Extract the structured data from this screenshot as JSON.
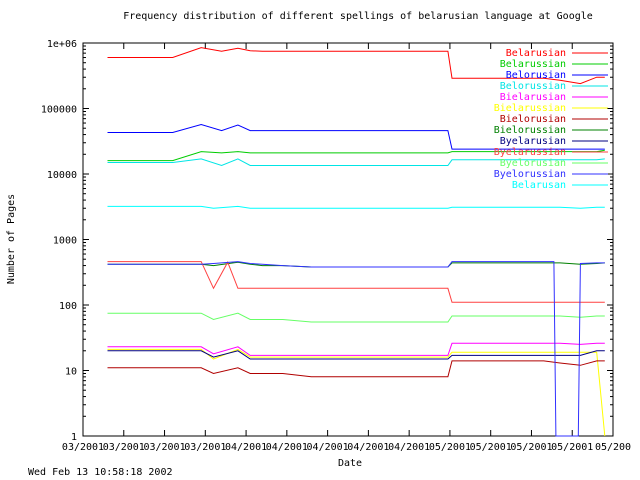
{
  "chart_data": {
    "type": "line",
    "title": "Frequency distribution of different spellings of belarusian language at Google",
    "xlabel": "Date",
    "ylabel": "Number of Pages",
    "timestamp": "Wed Feb 13 10:58:18 2002",
    "y_scale": "log",
    "ylim": [
      1,
      1000000
    ],
    "y_ticks": [
      {
        "value": 1,
        "label": "1"
      },
      {
        "value": 10,
        "label": "10"
      },
      {
        "value": 100,
        "label": "100"
      },
      {
        "value": 1000,
        "label": "1000"
      },
      {
        "value": 10000,
        "label": "10000"
      },
      {
        "value": 100000,
        "label": "100000"
      },
      {
        "value": 1000000,
        "label": "1e+06"
      }
    ],
    "x_ticks": [
      {
        "index": 0,
        "label": "03/2001"
      },
      {
        "index": 1,
        "label": "03/2001"
      },
      {
        "index": 2,
        "label": "03/2001"
      },
      {
        "index": 3,
        "label": "03/2001"
      },
      {
        "index": 4,
        "label": "04/2001"
      },
      {
        "index": 5,
        "label": "04/2001"
      },
      {
        "index": 6,
        "label": "04/2001"
      },
      {
        "index": 7,
        "label": "04/2001"
      },
      {
        "index": 8,
        "label": "04/2001"
      },
      {
        "index": 9,
        "label": "05/2001"
      },
      {
        "index": 10,
        "label": "05/2001"
      },
      {
        "index": 11,
        "label": "05/2001"
      },
      {
        "index": 12,
        "label": "05/2001"
      },
      {
        "index": 13,
        "label": "05/200"
      }
    ],
    "xlim": [
      0,
      13
    ],
    "grid": false,
    "legend_position": "top-right",
    "series": [
      {
        "name": "Belarusian",
        "color": "#ff0000",
        "x": [
          0.6,
          2.2,
          2.9,
          3.4,
          3.8,
          4.1,
          4.4,
          4.9,
          5.6,
          7.0,
          8.0,
          8.95,
          9.05,
          11.3,
          11.7,
          12.2,
          12.6,
          12.8
        ],
        "y": [
          600000,
          600000,
          850000,
          750000,
          830000,
          760000,
          750000,
          750000,
          750000,
          750000,
          750000,
          750000,
          290000,
          290000,
          270000,
          240000,
          300000,
          300000
        ]
      },
      {
        "name": "Belarussian",
        "color": "#00cc00",
        "x": [
          0.6,
          2.2,
          2.9,
          3.4,
          3.8,
          4.1,
          4.4,
          4.9,
          5.6,
          7.0,
          8.0,
          8.95,
          9.05,
          11.3,
          11.7,
          12.2,
          12.6,
          12.8
        ],
        "y": [
          16000,
          16000,
          22000,
          21000,
          22000,
          21000,
          21000,
          21000,
          21000,
          21000,
          21000,
          21000,
          22000,
          22000,
          22000,
          22000,
          22000,
          23000
        ]
      },
      {
        "name": "Belorusian",
        "color": "#0000ff",
        "x": [
          0.6,
          2.2,
          2.9,
          3.4,
          3.8,
          4.1,
          4.4,
          4.9,
          5.6,
          7.0,
          8.0,
          8.95,
          9.05,
          11.3,
          11.7,
          12.2,
          12.6,
          12.8
        ],
        "y": [
          43000,
          43000,
          57000,
          46000,
          56000,
          46000,
          46000,
          46000,
          46000,
          46000,
          46000,
          46000,
          24000,
          24000,
          24000,
          24000,
          24000,
          24000
        ]
      },
      {
        "name": "Belorussian",
        "color": "#00e5e5",
        "x": [
          0.6,
          2.2,
          2.9,
          3.4,
          3.8,
          4.1,
          4.4,
          4.9,
          5.6,
          7.0,
          8.0,
          8.95,
          9.05,
          11.3,
          11.7,
          12.2,
          12.6,
          12.8
        ],
        "y": [
          15000,
          15000,
          17000,
          13500,
          17000,
          13500,
          13500,
          13500,
          13500,
          13500,
          13500,
          13500,
          16500,
          16500,
          16500,
          16500,
          16500,
          17000
        ]
      },
      {
        "name": "Bielarusian",
        "color": "#ff00ff",
        "x": [
          0.6,
          2.2,
          2.9,
          3.2,
          3.8,
          4.1,
          4.4,
          4.9,
          5.6,
          7.0,
          8.0,
          8.95,
          9.05,
          11.3,
          11.7,
          12.2,
          12.6,
          12.8
        ],
        "y": [
          23,
          23,
          23,
          18,
          23,
          17,
          17,
          17,
          17,
          17,
          17,
          17,
          26,
          26,
          26,
          25,
          26,
          26
        ]
      },
      {
        "name": "Bielarussian",
        "color": "#ffff00",
        "x": [
          0.6,
          2.2,
          2.9,
          3.2,
          3.8,
          4.1,
          4.4,
          4.9,
          5.6,
          7.0,
          8.0,
          8.95,
          9.05,
          11.3,
          11.7,
          12.2,
          12.6,
          12.8
        ],
        "y": [
          21,
          21,
          21,
          15,
          21,
          16,
          16,
          16,
          16,
          16,
          16,
          16,
          19,
          19,
          19,
          19,
          19,
          1
        ]
      },
      {
        "name": "Bielorusian",
        "color": "#b00000",
        "x": [
          0.6,
          2.2,
          2.9,
          3.2,
          3.8,
          4.1,
          4.4,
          4.9,
          5.6,
          7.0,
          8.0,
          8.95,
          9.05,
          11.3,
          11.7,
          12.2,
          12.6,
          12.8
        ],
        "y": [
          11,
          11,
          11,
          9,
          11,
          9,
          9,
          9,
          8,
          8,
          8,
          8,
          14,
          14,
          13,
          12,
          14,
          14
        ]
      },
      {
        "name": "Bielorussian",
        "color": "#008000",
        "x": [
          0.6,
          2.2,
          2.9,
          3.2,
          3.8,
          4.1,
          4.4,
          4.9,
          5.6,
          7.0,
          8.0,
          8.95,
          9.05,
          11.3,
          11.7,
          12.2,
          12.6,
          12.8
        ],
        "y": [
          420,
          420,
          420,
          400,
          450,
          420,
          400,
          400,
          380,
          380,
          380,
          380,
          440,
          440,
          440,
          420,
          430,
          440
        ]
      },
      {
        "name": "Byelarusian",
        "color": "#000080",
        "x": [
          0.6,
          2.2,
          2.9,
          3.2,
          3.8,
          4.1,
          4.4,
          4.9,
          5.6,
          7.0,
          8.0,
          8.95,
          9.05,
          11.3,
          11.7,
          12.2,
          12.6,
          12.8
        ],
        "y": [
          20,
          20,
          20,
          16,
          20,
          15,
          15,
          15,
          15,
          15,
          15,
          15,
          17,
          17,
          17,
          17,
          20,
          20
        ]
      },
      {
        "name": "Byelarussian",
        "color": "#ff4040",
        "x": [
          0.6,
          2.2,
          2.9,
          3.2,
          3.55,
          3.8,
          4.1,
          4.4,
          4.9,
          5.6,
          7.0,
          8.0,
          8.95,
          9.05,
          11.3,
          11.7,
          12.2,
          12.6,
          12.8
        ],
        "y": [
          460,
          460,
          460,
          180,
          450,
          180,
          180,
          180,
          180,
          180,
          180,
          180,
          180,
          110,
          110,
          110,
          110,
          110,
          110
        ]
      },
      {
        "name": "Byelorusian",
        "color": "#66ff66",
        "x": [
          0.6,
          2.2,
          2.9,
          3.2,
          3.8,
          4.1,
          4.4,
          4.9,
          5.6,
          7.0,
          8.0,
          8.95,
          9.05,
          11.3,
          11.7,
          12.2,
          12.6,
          12.8
        ],
        "y": [
          75,
          75,
          75,
          60,
          75,
          60,
          60,
          60,
          55,
          55,
          55,
          55,
          68,
          68,
          68,
          65,
          68,
          68
        ]
      },
      {
        "name": "Byelorussian",
        "color": "#3030ff",
        "x": [
          0.6,
          2.2,
          2.9,
          3.2,
          3.8,
          4.1,
          4.4,
          4.9,
          5.6,
          7.0,
          8.0,
          8.95,
          9.05,
          11.3,
          11.55,
          11.6,
          12.15,
          12.2,
          12.6,
          12.8
        ],
        "y": [
          420,
          420,
          420,
          430,
          460,
          430,
          420,
          400,
          380,
          380,
          380,
          380,
          460,
          460,
          460,
          1,
          1,
          430,
          440,
          440
        ]
      },
      {
        "name": "Belarusan",
        "color": "#00ffff",
        "x": [
          0.6,
          2.2,
          2.9,
          3.2,
          3.8,
          4.1,
          4.4,
          4.9,
          5.6,
          7.0,
          8.0,
          8.95,
          9.05,
          11.3,
          11.7,
          12.2,
          12.6,
          12.8
        ],
        "y": [
          3200,
          3200,
          3200,
          3000,
          3200,
          3000,
          3000,
          3000,
          3000,
          3000,
          3000,
          3000,
          3100,
          3100,
          3100,
          3000,
          3100,
          3100
        ]
      }
    ]
  }
}
